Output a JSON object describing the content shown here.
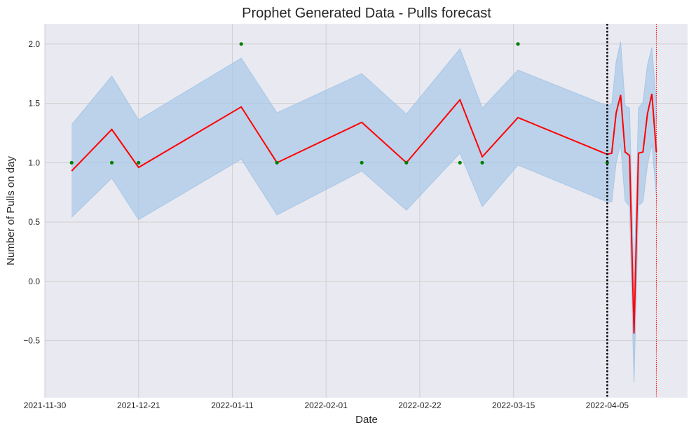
{
  "chart_data": {
    "type": "line",
    "title": "Prophet Generated Data - Pulls forecast",
    "xlabel": "Date",
    "ylabel": "Number of Pulls on day",
    "x_axis": {
      "kind": "date",
      "min": "2021-11-30",
      "max": "2022-04-23"
    },
    "y_axis": {
      "min": -0.98,
      "max": 2.17
    },
    "x_ticks": [
      "2021-11-30",
      "2021-12-21",
      "2022-01-11",
      "2022-02-01",
      "2022-02-22",
      "2022-03-15",
      "2022-04-05"
    ],
    "y_ticks": [
      -0.5,
      0.0,
      0.5,
      1.0,
      1.5,
      2.0
    ],
    "y_tick_labels": [
      "−0.5",
      "0.0",
      "0.5",
      "1.0",
      "1.5",
      "2.0"
    ],
    "grid": true,
    "colors": {
      "background": "#e9e9f1",
      "grid": "#cfcfcf",
      "forecast": "#ff0000",
      "band": "#a7c7e7",
      "observed": "#008000",
      "cutoff": "#000000",
      "future_cutoff": "#ff0000"
    },
    "observed_points": [
      {
        "x": "2021-12-06",
        "y": 1
      },
      {
        "x": "2021-12-15",
        "y": 1
      },
      {
        "x": "2021-12-21",
        "y": 1
      },
      {
        "x": "2022-01-13",
        "y": 2
      },
      {
        "x": "2022-01-21",
        "y": 1
      },
      {
        "x": "2022-02-09",
        "y": 1
      },
      {
        "x": "2022-02-19",
        "y": 1
      },
      {
        "x": "2022-03-03",
        "y": 1
      },
      {
        "x": "2022-03-08",
        "y": 1
      },
      {
        "x": "2022-03-16",
        "y": 2
      },
      {
        "x": "2022-04-05",
        "y": 1
      }
    ],
    "forecast": [
      {
        "x": "2021-12-06",
        "yhat": 0.93,
        "lower": 0.54,
        "upper": 1.32
      },
      {
        "x": "2021-12-15",
        "yhat": 1.28,
        "lower": 0.87,
        "upper": 1.73
      },
      {
        "x": "2021-12-21",
        "yhat": 0.96,
        "lower": 0.52,
        "upper": 1.36
      },
      {
        "x": "2022-01-13",
        "yhat": 1.47,
        "lower": 1.03,
        "upper": 1.88
      },
      {
        "x": "2022-01-21",
        "yhat": 1.0,
        "lower": 0.56,
        "upper": 1.42
      },
      {
        "x": "2022-02-09",
        "yhat": 1.34,
        "lower": 0.93,
        "upper": 1.75
      },
      {
        "x": "2022-02-19",
        "yhat": 1.0,
        "lower": 0.6,
        "upper": 1.41
      },
      {
        "x": "2022-03-03",
        "yhat": 1.53,
        "lower": 1.08,
        "upper": 1.96
      },
      {
        "x": "2022-03-08",
        "yhat": 1.05,
        "lower": 0.63,
        "upper": 1.46
      },
      {
        "x": "2022-03-16",
        "yhat": 1.38,
        "lower": 0.98,
        "upper": 1.78
      },
      {
        "x": "2022-04-05",
        "yhat": 1.07,
        "lower": 0.67,
        "upper": 1.48
      },
      {
        "x": "2022-04-06",
        "yhat": 1.08,
        "lower": 0.67,
        "upper": 1.49
      },
      {
        "x": "2022-04-07",
        "yhat": 1.42,
        "lower": 1.0,
        "upper": 1.85
      },
      {
        "x": "2022-04-08",
        "yhat": 1.57,
        "lower": 1.16,
        "upper": 2.02
      },
      {
        "x": "2022-04-09",
        "yhat": 1.09,
        "lower": 0.68,
        "upper": 1.48
      },
      {
        "x": "2022-04-10",
        "yhat": 1.06,
        "lower": 0.63,
        "upper": 1.46
      },
      {
        "x": "2022-04-11",
        "yhat": -0.44,
        "lower": -0.85,
        "upper": -0.05
      },
      {
        "x": "2022-04-12",
        "yhat": 1.08,
        "lower": 0.64,
        "upper": 1.46
      },
      {
        "x": "2022-04-13",
        "yhat": 1.09,
        "lower": 0.67,
        "upper": 1.51
      },
      {
        "x": "2022-04-14",
        "yhat": 1.41,
        "lower": 0.98,
        "upper": 1.82
      },
      {
        "x": "2022-04-15",
        "yhat": 1.58,
        "lower": 1.16,
        "upper": 1.97
      },
      {
        "x": "2022-04-16",
        "yhat": 1.09,
        "lower": 0.72,
        "upper": 1.49
      }
    ],
    "cutoff_line": {
      "x": "2022-04-05",
      "style": "dotted",
      "color": "#000000"
    },
    "future_cutoff_line": {
      "x": "2022-04-16",
      "style": "dotted",
      "color": "#ff0000"
    }
  }
}
